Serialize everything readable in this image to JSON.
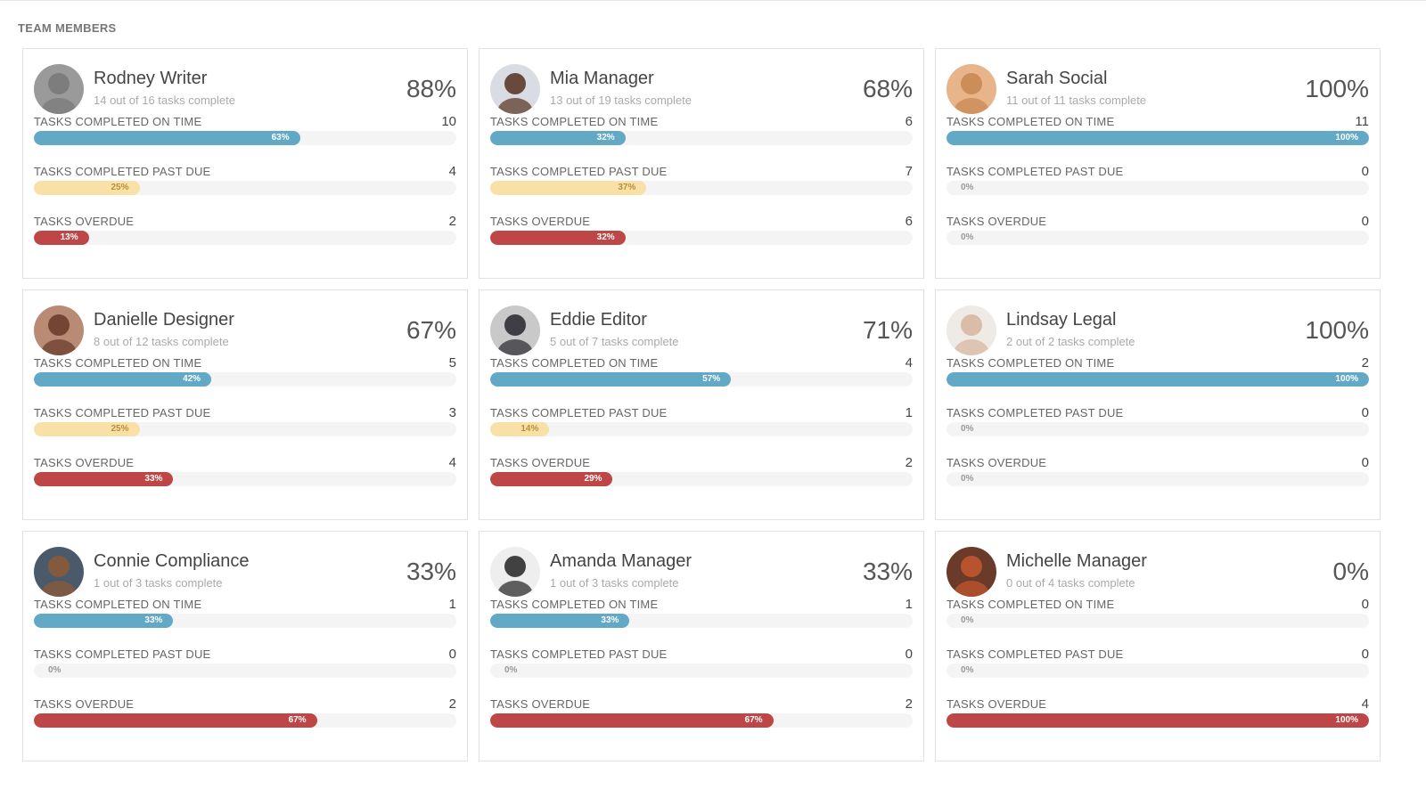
{
  "section_title": "TEAM MEMBERS",
  "labels": {
    "on_time": "TASKS COMPLETED ON TIME",
    "past_due": "TASKS COMPLETED PAST DUE",
    "overdue": "TASKS OVERDUE"
  },
  "colors": {
    "on_time": "#62a9c6",
    "past_due": "#f8e0a6",
    "overdue": "#bf4646"
  },
  "members": [
    {
      "name": "Rodney Writer",
      "summary": "14 out of 16 tasks complete",
      "percent": "88%",
      "avatar_tone": "#7a7a7a",
      "avatar_bg": "#9a9a9a",
      "metrics": {
        "on_time": {
          "count": "10",
          "pct": 63
        },
        "past_due": {
          "count": "4",
          "pct": 25
        },
        "overdue": {
          "count": "2",
          "pct": 13
        }
      }
    },
    {
      "name": "Mia Manager",
      "summary": "13 out of 19 tasks complete",
      "percent": "68%",
      "avatar_tone": "#5b3a2a",
      "avatar_bg": "#d9dde3",
      "metrics": {
        "on_time": {
          "count": "6",
          "pct": 32
        },
        "past_due": {
          "count": "7",
          "pct": 37
        },
        "overdue": {
          "count": "6",
          "pct": 32
        }
      }
    },
    {
      "name": "Sarah Social",
      "summary": "11 out of 11 tasks complete",
      "percent": "100%",
      "avatar_tone": "#c98a52",
      "avatar_bg": "#e8b48a",
      "metrics": {
        "on_time": {
          "count": "11",
          "pct": 100
        },
        "past_due": {
          "count": "0",
          "pct": 0
        },
        "overdue": {
          "count": "0",
          "pct": 0
        }
      }
    },
    {
      "name": "Danielle Designer",
      "summary": "8 out of 12 tasks complete",
      "percent": "67%",
      "avatar_tone": "#6b3e2e",
      "avatar_bg": "#b98a74",
      "metrics": {
        "on_time": {
          "count": "5",
          "pct": 42
        },
        "past_due": {
          "count": "3",
          "pct": 25
        },
        "overdue": {
          "count": "4",
          "pct": 33
        }
      }
    },
    {
      "name": "Eddie Editor",
      "summary": "5 out of 7 tasks complete",
      "percent": "71%",
      "avatar_tone": "#2f2f35",
      "avatar_bg": "#c9c9c9",
      "metrics": {
        "on_time": {
          "count": "4",
          "pct": 57
        },
        "past_due": {
          "count": "1",
          "pct": 14
        },
        "overdue": {
          "count": "2",
          "pct": 29
        }
      }
    },
    {
      "name": "Lindsay Legal",
      "summary": "2 out of 2 tasks complete",
      "percent": "100%",
      "avatar_tone": "#d8b7a2",
      "avatar_bg": "#eeeae6",
      "metrics": {
        "on_time": {
          "count": "2",
          "pct": 100
        },
        "past_due": {
          "count": "0",
          "pct": 0
        },
        "overdue": {
          "count": "0",
          "pct": 0
        }
      }
    },
    {
      "name": "Connie Compliance",
      "summary": "1 out of 3 tasks complete",
      "percent": "33%",
      "avatar_tone": "#8a5a3a",
      "avatar_bg": "#4b5a6a",
      "metrics": {
        "on_time": {
          "count": "1",
          "pct": 33
        },
        "past_due": {
          "count": "0",
          "pct": 0
        },
        "overdue": {
          "count": "2",
          "pct": 67
        }
      }
    },
    {
      "name": "Amanda Manager",
      "summary": "1 out of 3 tasks complete",
      "percent": "33%",
      "avatar_tone": "#2d2d2d",
      "avatar_bg": "#eeeeee",
      "metrics": {
        "on_time": {
          "count": "1",
          "pct": 33
        },
        "past_due": {
          "count": "0",
          "pct": 0
        },
        "overdue": {
          "count": "2",
          "pct": 67
        }
      }
    },
    {
      "name": "Michelle Manager",
      "summary": "0 out of 4 tasks complete",
      "percent": "0%",
      "avatar_tone": "#c0562e",
      "avatar_bg": "#6a3a2a",
      "metrics": {
        "on_time": {
          "count": "0",
          "pct": 0
        },
        "past_due": {
          "count": "0",
          "pct": 0
        },
        "overdue": {
          "count": "4",
          "pct": 100
        }
      }
    }
  ]
}
